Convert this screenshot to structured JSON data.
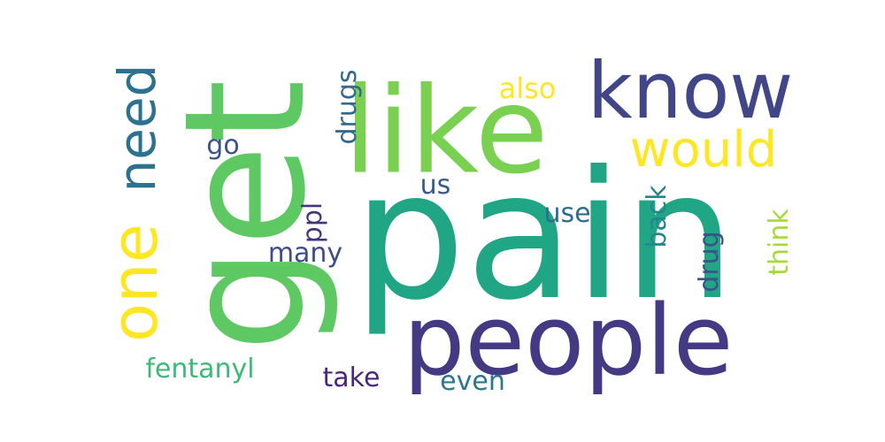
{
  "words": [
    {
      "key": "pain",
      "text": "pain",
      "color": "#21a685"
    },
    {
      "key": "like",
      "text": "like",
      "color": "#7ad151"
    },
    {
      "key": "get",
      "text": "get",
      "color": "#5ec962"
    },
    {
      "key": "people",
      "text": "people",
      "color": "#443a83"
    },
    {
      "key": "know",
      "text": "know",
      "color": "#404688"
    },
    {
      "key": "one",
      "text": "one",
      "color": "#fde725"
    },
    {
      "key": "need",
      "text": "need",
      "color": "#2c728e"
    },
    {
      "key": "would",
      "text": "would",
      "color": "#fde725"
    },
    {
      "key": "also",
      "text": "also",
      "color": "#fde725"
    },
    {
      "key": "drugs",
      "text": "drugs",
      "color": "#31688e"
    },
    {
      "key": "go",
      "text": "go",
      "color": "#3b528b"
    },
    {
      "key": "us",
      "text": "us",
      "color": "#38598c"
    },
    {
      "key": "ppl",
      "text": "ppl",
      "color": "#46337f"
    },
    {
      "key": "use",
      "text": "use",
      "color": "#2f6c8e"
    },
    {
      "key": "back",
      "text": "back",
      "color": "#25858e"
    },
    {
      "key": "think",
      "text": "think",
      "color": "#a5db36"
    },
    {
      "key": "drug",
      "text": "drug",
      "color": "#3b528b"
    },
    {
      "key": "many",
      "text": "many",
      "color": "#3e4c8a"
    },
    {
      "key": "fentanyl",
      "text": "fentanyl",
      "color": "#3bbb75"
    },
    {
      "key": "take",
      "text": "take",
      "color": "#482878"
    },
    {
      "key": "even",
      "text": "even",
      "color": "#2a778e"
    }
  ]
}
